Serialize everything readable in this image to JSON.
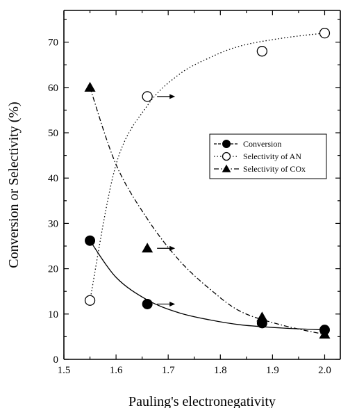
{
  "chart_data": {
    "type": "scatter",
    "title": "",
    "xlabel": "Pauling's electronegativity",
    "ylabel": "Conversion or Selectivity (%)",
    "xlim": [
      1.5,
      2.03
    ],
    "ylim": [
      0,
      77
    ],
    "x_ticks": [
      1.5,
      1.6,
      1.7,
      1.8,
      1.9,
      2.0
    ],
    "x_tick_labels": [
      "1.5",
      "1.6",
      "1.7",
      "1.8",
      "1.9",
      "2.0"
    ],
    "y_ticks": [
      0,
      10,
      20,
      30,
      40,
      50,
      60,
      70
    ],
    "y_tick_labels": [
      "0",
      "10",
      "20",
      "30",
      "40",
      "50",
      "60",
      "70"
    ],
    "grid": false,
    "legend_position": "center-right",
    "series": [
      {
        "name": "Conversion",
        "marker": "filled-circle",
        "line_style": "solid",
        "x": [
          1.55,
          1.66,
          1.88,
          2.0
        ],
        "y": [
          26.2,
          12.2,
          8.0,
          6.5
        ],
        "fit_y": [
          26.2,
          18.1,
          13.1,
          10.3,
          8.7,
          7.6,
          6.9,
          6.5
        ]
      },
      {
        "name": "Selectivity of AN",
        "marker": "open-circle",
        "line_style": "dotted",
        "x": [
          1.55,
          1.66,
          1.88,
          2.0
        ],
        "y": [
          13.0,
          58.0,
          68.0,
          72.0
        ],
        "fit_y": [
          13.0,
          43.0,
          56.0,
          62.8,
          66.6,
          69.2,
          70.9,
          72.0
        ]
      },
      {
        "name": "Selectivity of COx",
        "marker": "filled-triangle",
        "line_style": "dash-dot",
        "x": [
          1.55,
          1.66,
          1.88,
          2.0
        ],
        "y": [
          60.0,
          24.5,
          9.3,
          5.5
        ],
        "fit_y": [
          60.0,
          43.0,
          31.0,
          22.0,
          15.5,
          10.5,
          7.5,
          5.5
        ]
      }
    ],
    "fit_x": [
      1.55,
      1.6,
      1.66,
      1.72,
      1.78,
      1.84,
      1.92,
      2.0
    ],
    "annotations": [
      {
        "type": "arrow",
        "near_series": "Selectivity of AN",
        "x": 1.66,
        "y": 58.0
      },
      {
        "type": "arrow",
        "near_series": "Selectivity of COx",
        "x": 1.66,
        "y": 24.5
      },
      {
        "type": "arrow",
        "near_series": "Conversion",
        "x": 1.66,
        "y": 12.2
      }
    ]
  }
}
